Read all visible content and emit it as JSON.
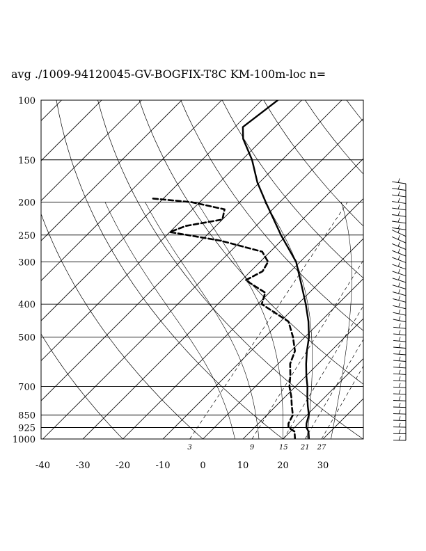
{
  "page": {
    "title": "avg ./1009-94120045-GV-BOGFIX-T8C KM-100m-loc n="
  },
  "chart_data": {
    "type": "skew-t",
    "title": "avg ./1009-94120045-GV-BOGFIX-T8C KM-100m-loc n=",
    "xlabel": "",
    "ylabel": "",
    "x_ticks": [
      -40,
      -30,
      -20,
      -10,
      0,
      10,
      20,
      30
    ],
    "xlim": [
      -40,
      40
    ],
    "pressure_ticks": [
      100,
      150,
      200,
      250,
      300,
      400,
      500,
      700,
      850,
      925,
      1000
    ],
    "ylim": [
      1000,
      100
    ],
    "y_scale": "log",
    "mixing_ratio_labels": [
      "3",
      "9",
      "15",
      "21",
      "27"
    ],
    "grid": true,
    "series": [
      {
        "style": "solid",
        "points": [
          {
            "p": 1000,
            "t": 26.5
          },
          {
            "p": 950,
            "t": 24.5
          },
          {
            "p": 925,
            "t": 23.0
          },
          {
            "p": 900,
            "t": 22.0
          },
          {
            "p": 850,
            "t": 20.5
          },
          {
            "p": 800,
            "t": 18.0
          },
          {
            "p": 750,
            "t": 15.5
          },
          {
            "p": 700,
            "t": 13.0
          },
          {
            "p": 650,
            "t": 10.0
          },
          {
            "p": 600,
            "t": 7.0
          },
          {
            "p": 550,
            "t": 4.0
          },
          {
            "p": 500,
            "t": 1.0
          },
          {
            "p": 450,
            "t": -3.0
          },
          {
            "p": 400,
            "t": -8.0
          },
          {
            "p": 350,
            "t": -14.0
          },
          {
            "p": 300,
            "t": -21.0
          },
          {
            "p": 250,
            "t": -31.5
          },
          {
            "p": 200,
            "t": -43.5
          },
          {
            "p": 175,
            "t": -50.5
          },
          {
            "p": 150,
            "t": -57.5
          },
          {
            "p": 130,
            "t": -65.0
          },
          {
            "p": 120,
            "t": -68.0
          },
          {
            "p": 100,
            "t": -66.0
          }
        ]
      },
      {
        "style": "dashed",
        "points": [
          {
            "p": 1000,
            "t": 23.0
          },
          {
            "p": 950,
            "t": 21.0
          },
          {
            "p": 925,
            "t": 18.5
          },
          {
            "p": 900,
            "t": 17.5
          },
          {
            "p": 850,
            "t": 16.5
          },
          {
            "p": 800,
            "t": 14.0
          },
          {
            "p": 750,
            "t": 11.5
          },
          {
            "p": 700,
            "t": 8.5
          },
          {
            "p": 650,
            "t": 6.0
          },
          {
            "p": 600,
            "t": 3.0
          },
          {
            "p": 550,
            "t": 1.0
          },
          {
            "p": 500,
            "t": -3.0
          },
          {
            "p": 450,
            "t": -8.0
          },
          {
            "p": 400,
            "t": -19.0
          },
          {
            "p": 370,
            "t": -21.0
          },
          {
            "p": 340,
            "t": -29.0
          },
          {
            "p": 320,
            "t": -27.0
          },
          {
            "p": 300,
            "t": -28.0
          },
          {
            "p": 280,
            "t": -32.0
          },
          {
            "p": 260,
            "t": -45.0
          },
          {
            "p": 245,
            "t": -60.0
          },
          {
            "p": 235,
            "t": -57.5
          },
          {
            "p": 225,
            "t": -50.0
          },
          {
            "p": 210,
            "t": -52.0
          },
          {
            "p": 200,
            "t": -62.0
          },
          {
            "p": 195,
            "t": -73.0
          }
        ]
      }
    ]
  }
}
